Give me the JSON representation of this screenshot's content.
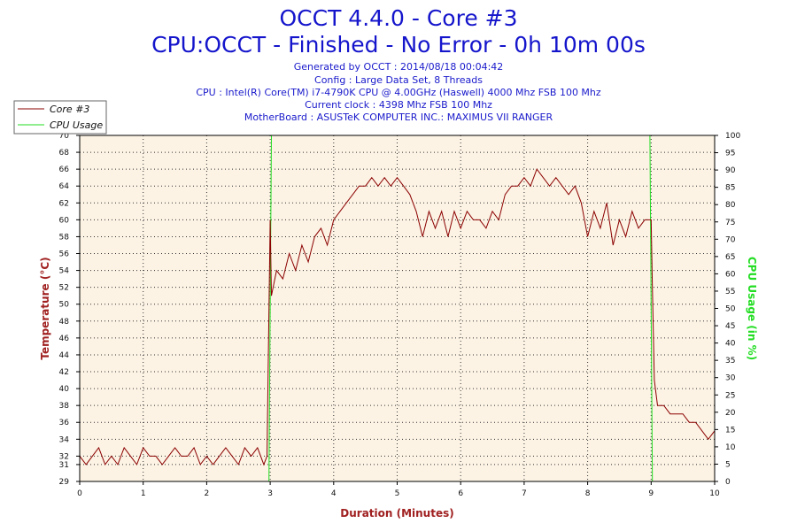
{
  "header": {
    "title": "OCCT 4.4.0 - Core #3",
    "subtitle": "CPU:OCCT - Finished - No Error - 0h 10m 00s",
    "info_lines": [
      "Generated by OCCT : 2014/08/18 00:04:42",
      "Config : Large Data Set, 8 Threads",
      "CPU : Intel(R) Core(TM) i7-4790K CPU @ 4.00GHz (Haswell) 4000 Mhz FSB 100 Mhz",
      "Current clock : 4398 Mhz FSB 100 Mhz",
      "MotherBoard : ASUSTeK COMPUTER INC.: MAXIMUS VII RANGER"
    ]
  },
  "colors": {
    "temperature": "#8b0000",
    "usage": "#22dd22",
    "plot_background": "#fcf3e4",
    "title": "#1515cc",
    "left_axis_title": "#a02020",
    "right_axis_title": "#22dd22",
    "x_axis_title": "#a02020"
  },
  "chart_data": {
    "type": "line",
    "xlabel": "Duration (Minutes)",
    "ylabel_left": "Temperature (°C)",
    "ylabel_right": "CPU Usage (in %)",
    "xlim": [
      0,
      10
    ],
    "ylim_left": [
      29,
      70
    ],
    "ylim_right": [
      0,
      100
    ],
    "x_ticks": [
      0,
      1,
      2,
      3,
      4,
      5,
      6,
      7,
      8,
      9,
      10
    ],
    "y_left_ticks": [
      29,
      31,
      32,
      34,
      36,
      38,
      40,
      42,
      44,
      46,
      48,
      50,
      52,
      54,
      56,
      58,
      60,
      62,
      64,
      66,
      68,
      70
    ],
    "y_right_ticks": [
      0,
      5,
      10,
      15,
      20,
      25,
      30,
      35,
      40,
      45,
      50,
      55,
      60,
      65,
      70,
      75,
      80,
      85,
      90,
      95,
      100
    ],
    "grid": true,
    "legend_position": "top-left",
    "series": [
      {
        "name": "Core #3",
        "axis": "left",
        "points": [
          [
            0,
            32
          ],
          [
            0.1,
            31
          ],
          [
            0.2,
            32
          ],
          [
            0.3,
            33
          ],
          [
            0.4,
            31
          ],
          [
            0.5,
            32
          ],
          [
            0.6,
            31
          ],
          [
            0.7,
            33
          ],
          [
            0.8,
            32
          ],
          [
            0.9,
            31
          ],
          [
            1,
            33
          ],
          [
            1.1,
            32
          ],
          [
            1.2,
            32
          ],
          [
            1.3,
            31
          ],
          [
            1.4,
            32
          ],
          [
            1.5,
            33
          ],
          [
            1.6,
            32
          ],
          [
            1.7,
            32
          ],
          [
            1.8,
            33
          ],
          [
            1.9,
            31
          ],
          [
            2,
            32
          ],
          [
            2.1,
            31
          ],
          [
            2.2,
            32
          ],
          [
            2.3,
            33
          ],
          [
            2.4,
            32
          ],
          [
            2.5,
            31
          ],
          [
            2.6,
            33
          ],
          [
            2.7,
            32
          ],
          [
            2.8,
            33
          ],
          [
            2.9,
            31
          ],
          [
            2.95,
            32
          ],
          [
            3.0,
            60
          ],
          [
            3.02,
            51
          ],
          [
            3.1,
            54
          ],
          [
            3.2,
            53
          ],
          [
            3.3,
            56
          ],
          [
            3.4,
            54
          ],
          [
            3.5,
            57
          ],
          [
            3.6,
            55
          ],
          [
            3.7,
            58
          ],
          [
            3.8,
            59
          ],
          [
            3.9,
            57
          ],
          [
            4.0,
            60
          ],
          [
            4.1,
            61
          ],
          [
            4.2,
            62
          ],
          [
            4.3,
            63
          ],
          [
            4.4,
            64
          ],
          [
            4.5,
            64
          ],
          [
            4.6,
            65
          ],
          [
            4.7,
            64
          ],
          [
            4.8,
            65
          ],
          [
            4.9,
            64
          ],
          [
            5.0,
            65
          ],
          [
            5.1,
            64
          ],
          [
            5.2,
            63
          ],
          [
            5.3,
            61
          ],
          [
            5.4,
            58
          ],
          [
            5.5,
            61
          ],
          [
            5.6,
            59
          ],
          [
            5.7,
            61
          ],
          [
            5.8,
            58
          ],
          [
            5.9,
            61
          ],
          [
            6.0,
            59
          ],
          [
            6.1,
            61
          ],
          [
            6.2,
            60
          ],
          [
            6.3,
            60
          ],
          [
            6.4,
            59
          ],
          [
            6.5,
            61
          ],
          [
            6.6,
            60
          ],
          [
            6.7,
            63
          ],
          [
            6.8,
            64
          ],
          [
            6.9,
            64
          ],
          [
            7.0,
            65
          ],
          [
            7.1,
            64
          ],
          [
            7.2,
            66
          ],
          [
            7.3,
            65
          ],
          [
            7.4,
            64
          ],
          [
            7.5,
            65
          ],
          [
            7.6,
            64
          ],
          [
            7.7,
            63
          ],
          [
            7.8,
            64
          ],
          [
            7.9,
            62
          ],
          [
            8.0,
            58
          ],
          [
            8.1,
            61
          ],
          [
            8.2,
            59
          ],
          [
            8.3,
            62
          ],
          [
            8.4,
            57
          ],
          [
            8.5,
            60
          ],
          [
            8.6,
            58
          ],
          [
            8.7,
            61
          ],
          [
            8.8,
            59
          ],
          [
            8.9,
            60
          ],
          [
            9.0,
            60
          ],
          [
            9.02,
            52
          ],
          [
            9.05,
            41
          ],
          [
            9.1,
            38
          ],
          [
            9.2,
            38
          ],
          [
            9.3,
            37
          ],
          [
            9.4,
            37
          ],
          [
            9.5,
            37
          ],
          [
            9.6,
            36
          ],
          [
            9.7,
            36
          ],
          [
            9.8,
            35
          ],
          [
            9.9,
            34
          ],
          [
            10,
            35
          ]
        ]
      },
      {
        "name": "CPU Usage",
        "axis": "right",
        "points": [
          [
            0,
            0
          ],
          [
            2.98,
            0
          ],
          [
            3.0,
            50
          ],
          [
            3.02,
            100
          ],
          [
            8.98,
            100
          ],
          [
            9.0,
            50
          ],
          [
            9.02,
            0
          ],
          [
            10,
            0
          ]
        ]
      }
    ]
  }
}
